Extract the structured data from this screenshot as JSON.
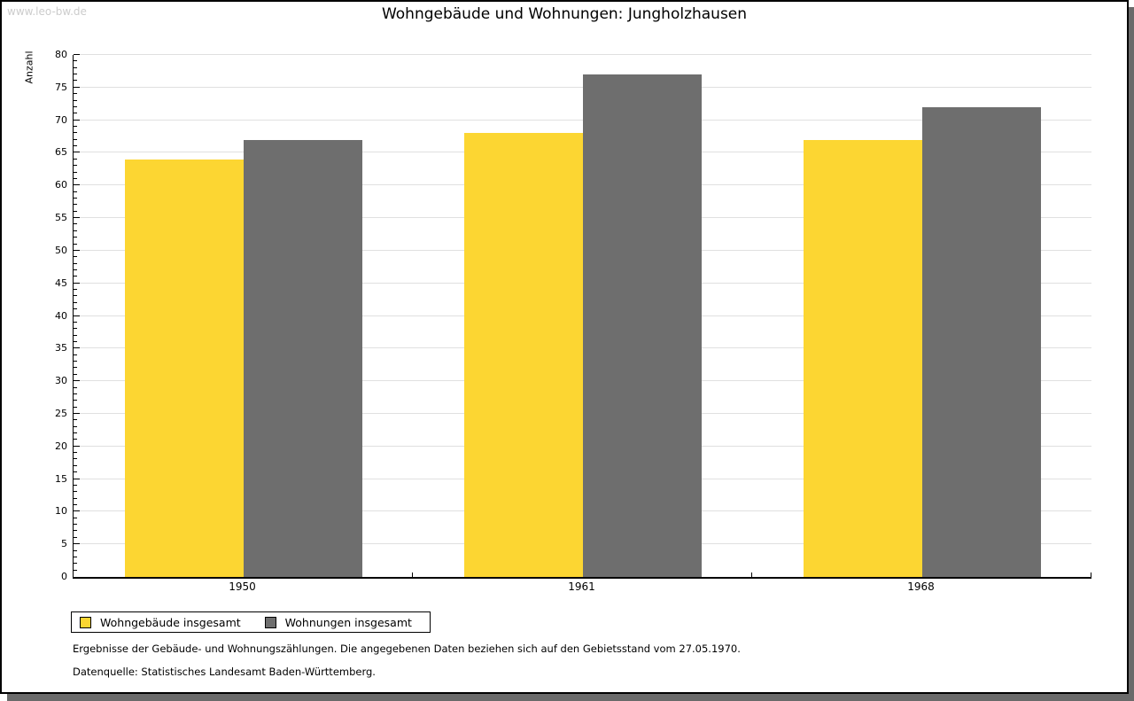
{
  "watermark": "www.leo-bw.de",
  "title": "Wohngebäude und Wohnungen: Jungholzhausen",
  "chart_data": {
    "type": "bar",
    "title": "Wohngebäude und Wohnungen: Jungholzhausen",
    "categories": [
      "1950",
      "1961",
      "1968"
    ],
    "series": [
      {
        "name": "Wohngebäude insgesamt",
        "color": "#fcd632",
        "values": [
          64,
          68,
          67
        ]
      },
      {
        "name": "Wohnungen insgesamt",
        "color": "#6e6e6e",
        "values": [
          67,
          77,
          72
        ]
      }
    ],
    "xlabel": "",
    "ylabel": "Anzahl",
    "ylim": [
      0,
      80
    ],
    "y_major_step": 5,
    "y_minor_step": 1,
    "grid": true,
    "legend_position": "bottom-left"
  },
  "style": {
    "grid_color": "#e0e0e0",
    "axis_color": "#000000",
    "watermark_color": "#cccccc",
    "shadow_color": "#6a6a6a"
  },
  "footnotes": [
    "Ergebnisse der Gebäude- und Wohnungszählungen. Die angegebenen Daten beziehen sich auf den Gebietsstand vom 27.05.1970.",
    "Datenquelle: Statistisches Landesamt Baden-Württemberg."
  ]
}
